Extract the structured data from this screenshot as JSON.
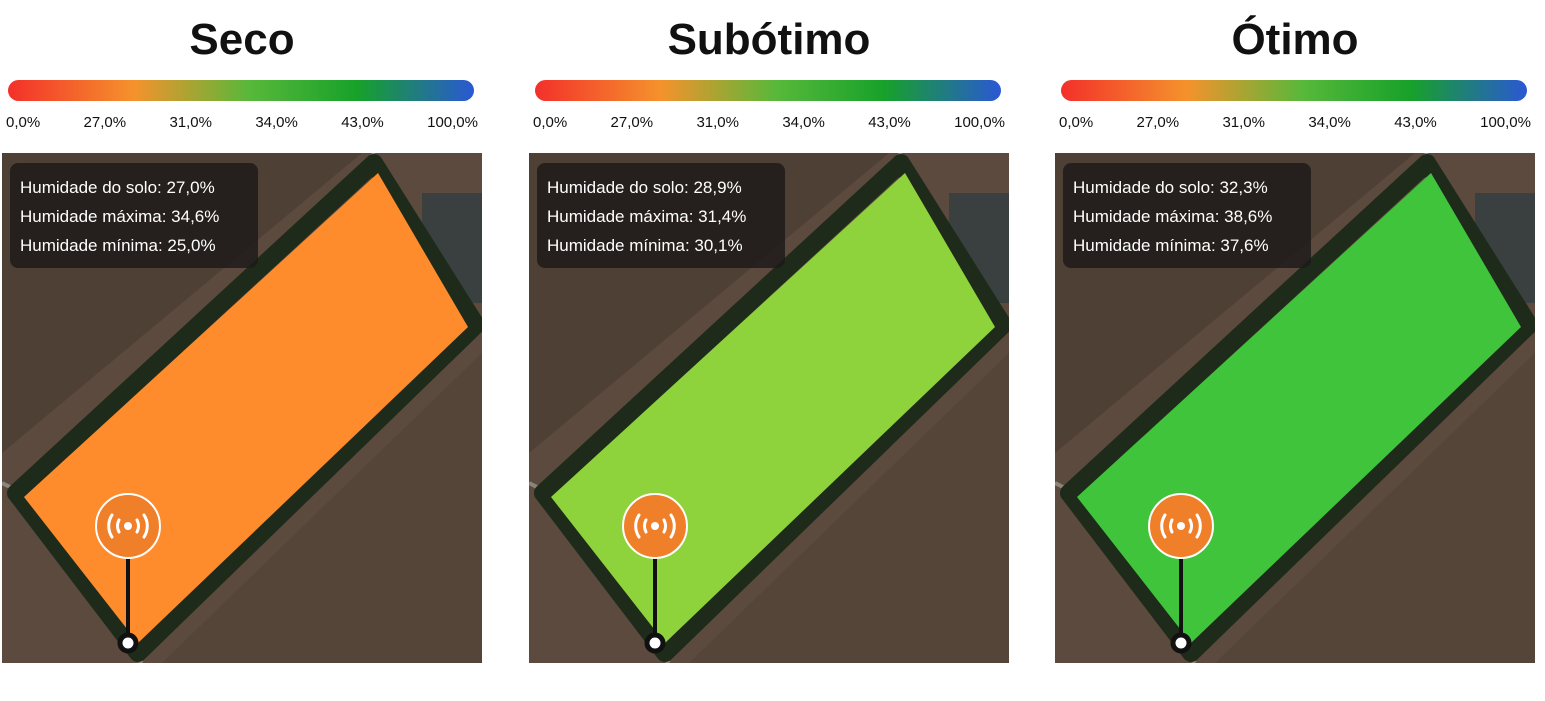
{
  "panels": [
    {
      "title": "Seco",
      "scale": [
        "0,0%",
        "27,0%",
        "31,0%",
        "34,0%",
        "43,0%",
        "100,0%"
      ],
      "info": [
        "Humidade do solo: 27,0%",
        "Humidade máxima: 34,6%",
        "Humidade mínima: 25,0%"
      ]
    },
    {
      "title": "Subótimo",
      "scale": [
        "0,0%",
        "27,0%",
        "31,0%",
        "34,0%",
        "43,0%",
        "100,0%"
      ],
      "info": [
        "Humidade do solo: 28,9%",
        "Humidade máxima: 31,4%",
        "Humidade mínima: 30,1%"
      ]
    },
    {
      "title": "Ótimo",
      "scale": [
        "0,0%",
        "27,0%",
        "31,0%",
        "34,0%",
        "43,0%",
        "100,0%"
      ],
      "info": [
        "Humidade do solo: 32,3%",
        "Humidade máxima: 38,6%",
        "Humidade mínima: 37,6%"
      ]
    }
  ]
}
